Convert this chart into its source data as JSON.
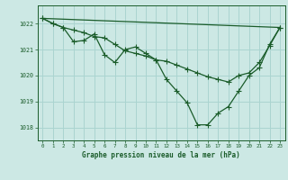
{
  "title": "Graphe pression niveau de la mer (hPa)",
  "bg_color": "#cce8e4",
  "plot_bg_color": "#cce8e4",
  "grid_color": "#aad4d0",
  "line_color": "#1a5c2a",
  "xlim": [
    -0.5,
    23.5
  ],
  "ylim": [
    1017.5,
    1022.7
  ],
  "yticks": [
    1018,
    1019,
    1020,
    1021,
    1022
  ],
  "xticks": [
    0,
    1,
    2,
    3,
    4,
    5,
    6,
    7,
    8,
    9,
    10,
    11,
    12,
    13,
    14,
    15,
    16,
    17,
    18,
    19,
    20,
    21,
    22,
    23
  ],
  "series": {
    "line1_x": [
      0,
      23
    ],
    "line1_y": [
      1022.2,
      1021.85
    ],
    "line2_x": [
      0,
      23
    ],
    "line2_y": [
      1022.2,
      1021.85
    ],
    "line3": [
      1022.2,
      1022.0,
      1021.85,
      1021.75,
      1021.65,
      1021.5,
      1021.45,
      1021.2,
      1020.95,
      1020.85,
      1020.75,
      1020.6,
      1020.55,
      1020.4,
      1020.25,
      1020.1,
      1019.95,
      1019.85,
      1019.75,
      1020.0,
      1020.1,
      1020.5,
      1021.15,
      1021.85
    ],
    "line4": [
      1022.2,
      1022.0,
      1021.85,
      1021.3,
      1021.35,
      1021.6,
      1020.8,
      1020.5,
      1021.0,
      1021.1,
      1020.85,
      1020.6,
      1019.85,
      1019.4,
      1018.95,
      1018.1,
      1018.1,
      1018.55,
      1018.8,
      1019.4,
      1020.0,
      1020.3,
      1021.2,
      1021.85
    ]
  }
}
